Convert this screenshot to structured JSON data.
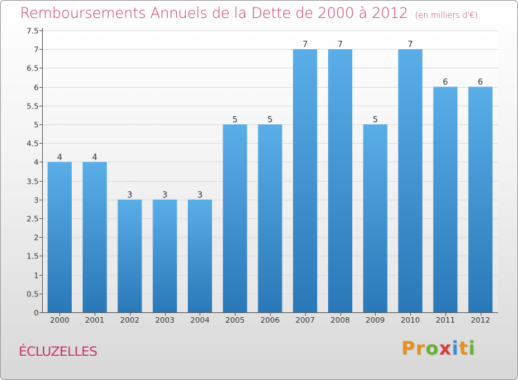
{
  "header": {
    "title": "Remboursements Annuels de la Dette de 2000 à 2012",
    "subtitle": "(en milliers d'€)"
  },
  "footer": {
    "commune": "ÉCLUZELLES",
    "brand": "Proxiti",
    "brand_letters": [
      "P",
      "r",
      "o",
      "x",
      "i",
      "t",
      "i"
    ],
    "brand_colors": [
      "#e8901a",
      "#e8901a",
      "#6ab030",
      "#d83c3c",
      "#3a8fd8",
      "#e8901a",
      "#6ab030"
    ]
  },
  "chart_data": {
    "type": "bar",
    "categories": [
      "2000",
      "2001",
      "2002",
      "2003",
      "2004",
      "2005",
      "2006",
      "2007",
      "2008",
      "2009",
      "2010",
      "2011",
      "2012"
    ],
    "values": [
      4,
      4,
      3,
      3,
      3,
      5,
      5,
      7,
      7,
      5,
      7,
      6,
      6
    ],
    "data_labels": [
      "4",
      "4",
      "3",
      "3",
      "3",
      "5",
      "5",
      "7",
      "7",
      "5",
      "7",
      "6",
      "6"
    ],
    "yticks": [
      "0",
      "0.5",
      "1",
      "1.5",
      "2",
      "2.5",
      "3",
      "3.5",
      "4",
      "4.5",
      "5",
      "5.5",
      "6",
      "6.5",
      "7",
      "7.5"
    ],
    "ylim": [
      0,
      7.5
    ],
    "grid": true,
    "bar_color_top": "#5aaee8",
    "bar_color_bottom": "#2a78b8",
    "title": "Remboursements Annuels de la Dette de 2000 à 2012",
    "xlabel": "",
    "ylabel": ""
  }
}
